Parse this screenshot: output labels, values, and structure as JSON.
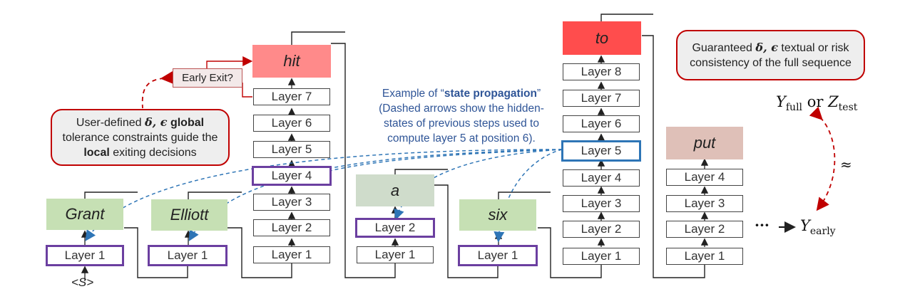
{
  "columns": [
    {
      "token": "Grant",
      "layers": [
        "Layer 1"
      ]
    },
    {
      "token": "Elliott",
      "layers": [
        "Layer 1"
      ]
    },
    {
      "token": "hit",
      "layers": [
        "Layer 1",
        "Layer 2",
        "Layer 3",
        "Layer 4",
        "Layer 5",
        "Layer 6",
        "Layer 7"
      ]
    },
    {
      "token": "a",
      "layers": [
        "Layer 1",
        "Layer 2"
      ]
    },
    {
      "token": "six",
      "layers": [
        "Layer 1"
      ]
    },
    {
      "token": "to",
      "layers": [
        "Layer 1",
        "Layer 2",
        "Layer 3",
        "Layer 4",
        "Layer 5",
        "Layer 6",
        "Layer 7",
        "Layer 8"
      ]
    },
    {
      "token": "put",
      "layers": [
        "Layer 1",
        "Layer 2",
        "Layer 3",
        "Layer 4"
      ]
    }
  ],
  "start_token": "<S>",
  "early_exit": "Early Exit?",
  "user_callout": {
    "line1_pre": "User-defined ",
    "line1_sym": "δ, ϵ",
    "line1_bold": " global",
    "line2": "tolerance constraints guide the",
    "line3_bold": "local",
    "line3_post": " exiting decisions"
  },
  "guarantee_callout": {
    "line1_pre": "Guaranteed ",
    "line1_sym": "δ, ϵ",
    "line1_post": " textual or risk",
    "line2": "consistency of the full sequence"
  },
  "state_note": {
    "line1_pre": "Example of “",
    "line1_bold": "state propagation",
    "line1_post": "”",
    "line2": "(Dashed arrows show the hidden-",
    "line3": "states of previous steps used to",
    "line4": "compute layer 5 at position 6)."
  },
  "y_full": {
    "y1": "Y",
    "s1": "full",
    "or": " or ",
    "z": "Z",
    "s2": "test"
  },
  "y_early": {
    "dots": "···",
    "y": "Y",
    "s": "early"
  },
  "approx": "≈",
  "colors": {
    "purple": "#6b3fa0",
    "blue": "#2e75b6",
    "red": "#c00000",
    "note": "#2f5597"
  }
}
